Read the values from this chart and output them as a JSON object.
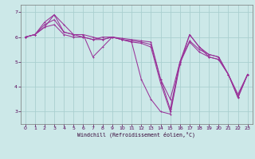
{
  "xlabel": "Windchill (Refroidissement éolien,°C)",
  "background_color": "#cce8e8",
  "grid_color": "#aacfcf",
  "line_color": "#993399",
  "xlim": [
    -0.5,
    23.5
  ],
  "ylim": [
    2.5,
    7.3
  ],
  "yticks": [
    3,
    4,
    5,
    6,
    7
  ],
  "xticks": [
    0,
    1,
    2,
    3,
    4,
    5,
    6,
    7,
    8,
    9,
    10,
    11,
    12,
    13,
    14,
    15,
    16,
    17,
    18,
    19,
    20,
    21,
    22,
    23
  ],
  "series": [
    [
      6.0,
      6.1,
      6.6,
      6.9,
      6.2,
      6.1,
      6.1,
      5.2,
      5.6,
      6.0,
      5.95,
      5.9,
      5.85,
      5.8,
      4.3,
      3.5,
      5.0,
      6.1,
      5.6,
      5.3,
      5.2,
      4.5,
      3.7,
      4.5
    ],
    [
      6.0,
      6.1,
      6.5,
      6.7,
      6.2,
      6.1,
      6.1,
      6.0,
      5.9,
      6.0,
      5.9,
      5.85,
      5.8,
      5.7,
      4.3,
      3.1,
      5.0,
      5.85,
      5.5,
      5.3,
      5.2,
      4.5,
      3.6,
      4.5
    ],
    [
      6.0,
      6.1,
      6.4,
      6.5,
      6.1,
      6.0,
      6.0,
      5.9,
      5.9,
      6.0,
      5.9,
      5.8,
      5.75,
      5.6,
      4.15,
      3.0,
      4.95,
      5.8,
      5.4,
      5.2,
      5.1,
      4.5,
      3.55,
      4.5
    ],
    [
      6.0,
      6.1,
      6.4,
      6.9,
      6.5,
      6.1,
      6.0,
      5.9,
      6.0,
      6.0,
      5.9,
      5.8,
      4.3,
      3.5,
      3.0,
      2.9,
      4.9,
      6.1,
      5.6,
      5.2,
      5.1,
      4.5,
      3.6,
      4.5
    ]
  ]
}
